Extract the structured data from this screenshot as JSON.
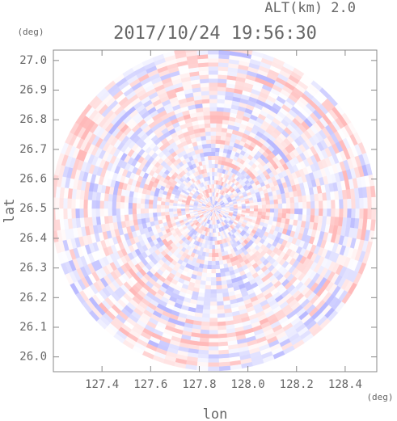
{
  "chart_data": {
    "type": "radar-map",
    "title": "2017/10/24 19:56:30",
    "subtitle": "ALT(km) 2.0",
    "x_label": "lon",
    "y_label": "lat",
    "x_unit": "(deg)",
    "y_unit": "(deg)",
    "xlim": [
      127.2,
      128.53
    ],
    "ylim": [
      25.95,
      27.035
    ],
    "xticks": [
      127.4,
      127.6,
      127.8,
      {
        "value": 128,
        "label": "128.0"
      },
      128.2,
      128.4
    ],
    "yticks": [
      {
        "value": 26,
        "label": "26.0"
      },
      26.1,
      26.2,
      26.3,
      26.4,
      26.5,
      26.6,
      26.7,
      26.8,
      26.9,
      {
        "value": 27,
        "label": "27.0"
      }
    ]
  }
}
